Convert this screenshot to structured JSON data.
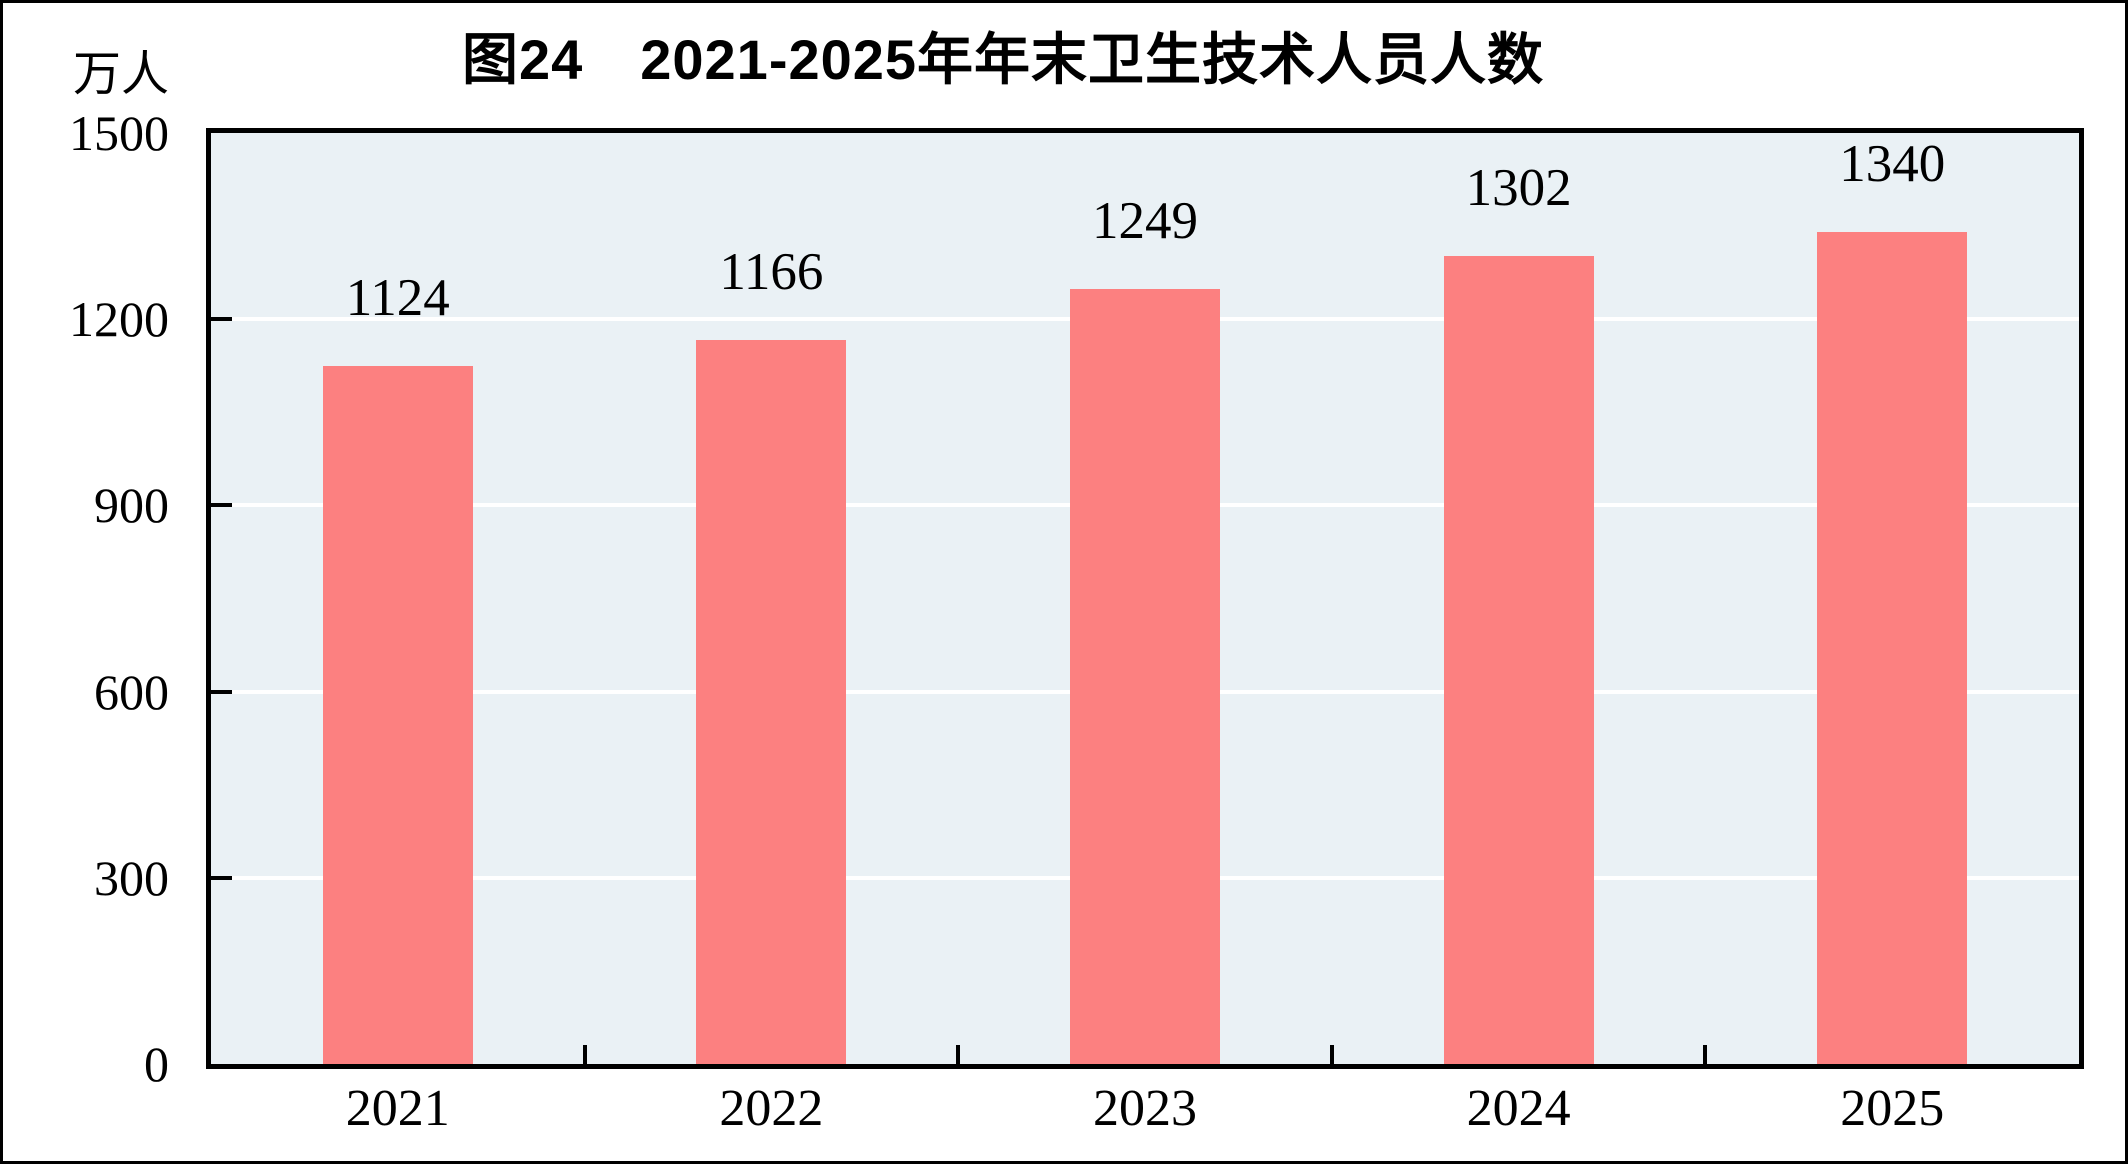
{
  "figure": {
    "title": "图24　2021-2025年年末卫生技术人员人数",
    "unit_label": "万人"
  },
  "chart_data": {
    "type": "bar",
    "title": "图24　2021-2025年年末卫生技术人员人数",
    "subtitle": "",
    "categories": [
      "2021",
      "2022",
      "2023",
      "2024",
      "2025"
    ],
    "values": [
      1124,
      1166,
      1249,
      1302,
      1340
    ],
    "data_labels": [
      "1124",
      "1166",
      "1249",
      "1302",
      "1340"
    ],
    "series": [
      {
        "name": "年末卫生技术人员人数",
        "values": [
          1124,
          1166,
          1249,
          1302,
          1340
        ]
      }
    ],
    "xlabel": "",
    "ylabel": "万人",
    "ylim": [
      0,
      1500
    ],
    "yticks": [
      0,
      300,
      600,
      900,
      1200,
      1500
    ],
    "grid": true,
    "gridlines_at": [
      300,
      600,
      900,
      1200
    ],
    "legend": "none",
    "colors": {
      "bar": "#FC8080",
      "plot_background": "#EAF1F5",
      "gridline": "#FFFFFF",
      "axis": "#000000",
      "text": "#000000"
    }
  }
}
